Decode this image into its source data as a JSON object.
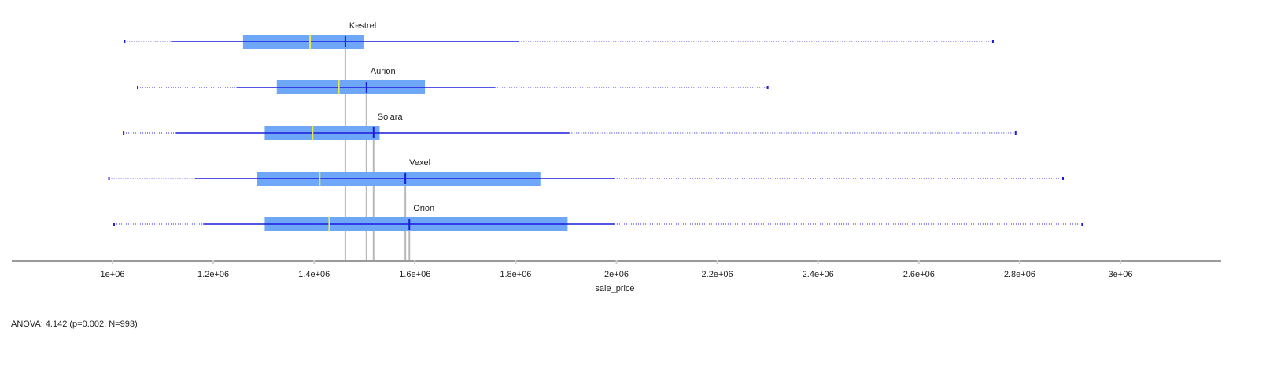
{
  "chart_data": {
    "type": "boxplot",
    "orientation": "horizontal",
    "xlabel": "sale_price",
    "xlim": [
      700000,
      3200000
    ],
    "xticks": [
      1000000,
      1200000,
      1400000,
      1600000,
      1800000,
      2000000,
      2200000,
      2400000,
      2600000,
      2800000,
      3000000
    ],
    "xtick_labels": [
      "1e+06",
      "1.2e+06",
      "1.4e+06",
      "1.6e+06",
      "1.8e+06",
      "2e+06",
      "2.2e+06",
      "2.4e+06",
      "2.6e+06",
      "2.8e+06",
      "3e+06"
    ],
    "groups": [
      {
        "name": "Kestrel",
        "min": 1024000,
        "whisker_low": 1116000,
        "q1": 1259000,
        "median": 1392000,
        "mean": 1462000,
        "q3": 1498000,
        "whisker_high": 1806000,
        "max": 2747000
      },
      {
        "name": "Aurion",
        "min": 1050000,
        "whisker_low": 1246000,
        "q1": 1326000,
        "median": 1449000,
        "mean": 1504000,
        "q3": 1620000,
        "whisker_high": 1759000,
        "max": 2300000
      },
      {
        "name": "Solara",
        "min": 1022000,
        "whisker_low": 1126000,
        "q1": 1302000,
        "median": 1397000,
        "mean": 1518000,
        "q3": 1530000,
        "whisker_high": 1906000,
        "max": 2792000
      },
      {
        "name": "Vexel",
        "min": 993000,
        "whisker_low": 1164000,
        "q1": 1286000,
        "median": 1411000,
        "mean": 1581000,
        "q3": 1849000,
        "whisker_high": 1996000,
        "max": 2886000
      },
      {
        "name": "Orion",
        "min": 1003000,
        "whisker_low": 1180000,
        "q1": 1302000,
        "median": 1430000,
        "mean": 1589000,
        "q3": 1903000,
        "whisker_high": 1996000,
        "max": 2924000
      }
    ],
    "grid": false,
    "colors": {
      "box": "#6ea7f7",
      "whisker": "#1a1adb",
      "median": "#e9e94a",
      "mean": "#1a1adb",
      "guide": "#b9b9b9",
      "axis": "#9a9a9a"
    }
  },
  "stats_text": "ANOVA: 4.142 (p=0.002, N=993)"
}
